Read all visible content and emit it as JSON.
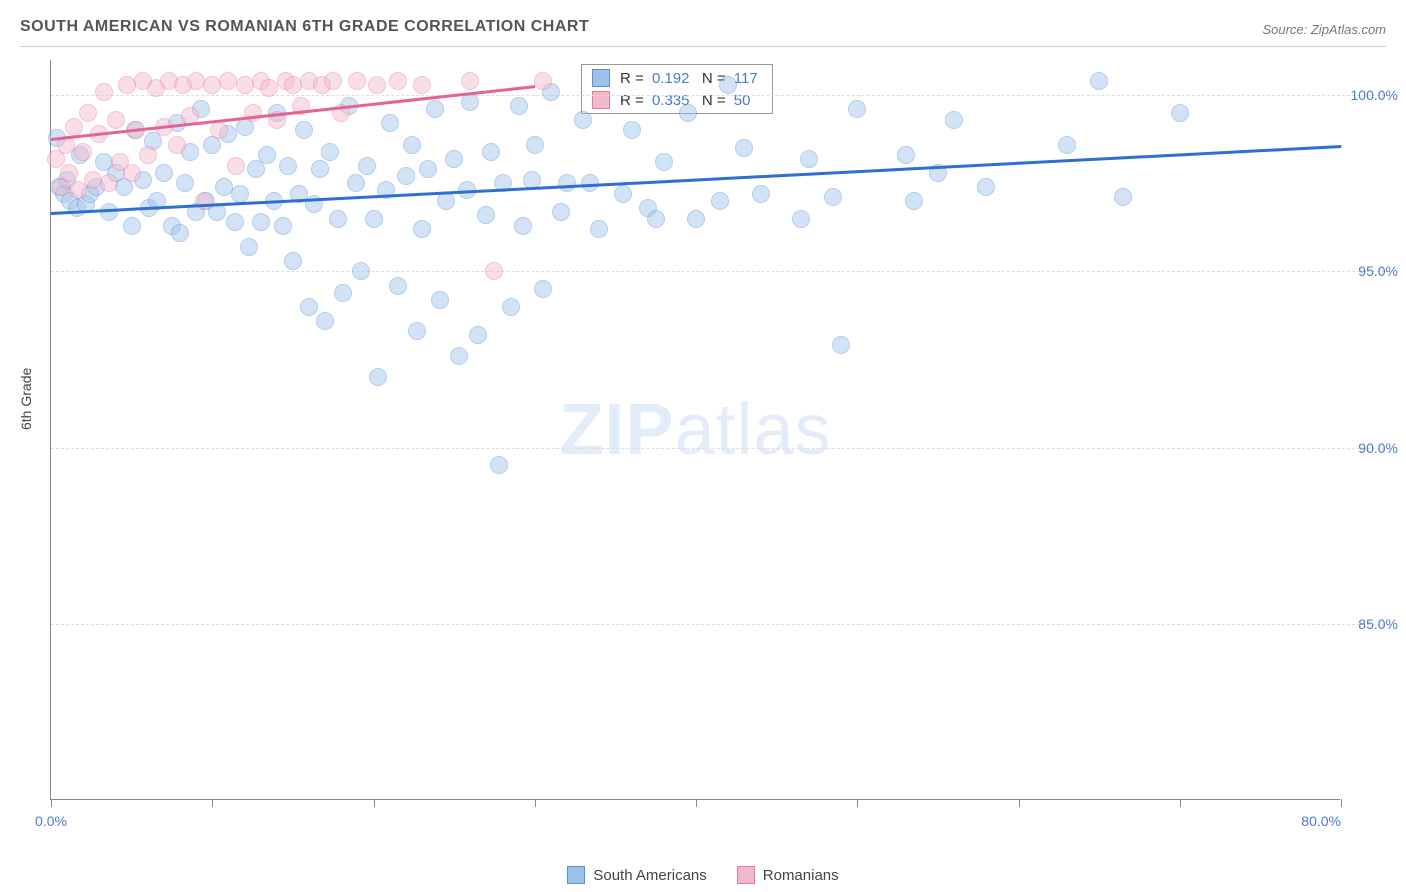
{
  "title": "SOUTH AMERICAN VS ROMANIAN 6TH GRADE CORRELATION CHART",
  "source_label": "Source: ZipAtlas.com",
  "y_axis_title": "6th Grade",
  "watermark_a": "ZIP",
  "watermark_b": "atlas",
  "chart": {
    "type": "scatter",
    "xlim": [
      0,
      80
    ],
    "ylim": [
      80,
      101
    ],
    "x_ticks_major": [
      0,
      80
    ],
    "x_ticks_minor": [
      10,
      20,
      30,
      40,
      50,
      60,
      70
    ],
    "x_tick_labels": {
      "0": "0.0%",
      "80": "80.0%"
    },
    "y_ticks": [
      85,
      90,
      95,
      100
    ],
    "y_tick_labels": {
      "85": "85.0%",
      "90": "90.0%",
      "95": "95.0%",
      "100": "100.0%"
    },
    "grid_color": "#dddddd",
    "background_color": "#ffffff",
    "axis_color": "#888888",
    "tick_label_color": "#4a7bc8",
    "marker_radius": 9,
    "marker_opacity": 0.45,
    "series": [
      {
        "name": "South Americans",
        "color_fill": "#9cc2ec",
        "color_stroke": "#5b8fd6",
        "trend": {
          "x1": 0,
          "y1": 96.7,
          "x2": 80,
          "y2": 98.6,
          "color": "#2e6fd1",
          "width": 2.5
        },
        "stats": {
          "R": "0.192",
          "N": "117"
        },
        "points": [
          [
            0.5,
            97.4
          ],
          [
            0.8,
            97.2
          ],
          [
            1.0,
            97.6
          ],
          [
            1.2,
            97.0
          ],
          [
            1.6,
            96.8
          ],
          [
            1.8,
            98.3
          ],
          [
            2.2,
            96.9
          ],
          [
            2.4,
            97.2
          ],
          [
            0.4,
            98.8
          ],
          [
            2.8,
            97.4
          ],
          [
            3.3,
            98.1
          ],
          [
            3.6,
            96.7
          ],
          [
            4.0,
            97.8
          ],
          [
            4.5,
            97.4
          ],
          [
            5.0,
            96.3
          ],
          [
            5.2,
            99.0
          ],
          [
            5.7,
            97.6
          ],
          [
            6.1,
            96.8
          ],
          [
            6.3,
            98.7
          ],
          [
            6.6,
            97.0
          ],
          [
            7.0,
            97.8
          ],
          [
            7.5,
            96.3
          ],
          [
            7.8,
            99.2
          ],
          [
            8.0,
            96.1
          ],
          [
            8.3,
            97.5
          ],
          [
            8.6,
            98.4
          ],
          [
            9.0,
            96.7
          ],
          [
            9.3,
            99.6
          ],
          [
            9.6,
            97.0
          ],
          [
            10.0,
            98.6
          ],
          [
            10.3,
            96.7
          ],
          [
            10.7,
            97.4
          ],
          [
            11.0,
            98.9
          ],
          [
            11.4,
            96.4
          ],
          [
            11.7,
            97.2
          ],
          [
            12.0,
            99.1
          ],
          [
            12.3,
            95.7
          ],
          [
            12.7,
            97.9
          ],
          [
            13.0,
            96.4
          ],
          [
            13.4,
            98.3
          ],
          [
            13.8,
            97.0
          ],
          [
            14.0,
            99.5
          ],
          [
            14.4,
            96.3
          ],
          [
            14.7,
            98.0
          ],
          [
            15.0,
            95.3
          ],
          [
            15.4,
            97.2
          ],
          [
            15.7,
            99.0
          ],
          [
            16.0,
            94.0
          ],
          [
            16.3,
            96.9
          ],
          [
            16.7,
            97.9
          ],
          [
            17.0,
            93.6
          ],
          [
            17.3,
            98.4
          ],
          [
            17.8,
            96.5
          ],
          [
            18.1,
            94.4
          ],
          [
            18.5,
            99.7
          ],
          [
            18.9,
            97.5
          ],
          [
            19.2,
            95.0
          ],
          [
            19.6,
            98.0
          ],
          [
            20.0,
            96.5
          ],
          [
            20.3,
            92.0
          ],
          [
            20.8,
            97.3
          ],
          [
            21.0,
            99.2
          ],
          [
            21.5,
            94.6
          ],
          [
            22.0,
            97.7
          ],
          [
            22.4,
            98.6
          ],
          [
            22.7,
            93.3
          ],
          [
            23.0,
            96.2
          ],
          [
            23.4,
            97.9
          ],
          [
            23.8,
            99.6
          ],
          [
            24.1,
            94.2
          ],
          [
            24.5,
            97.0
          ],
          [
            25.0,
            98.2
          ],
          [
            25.3,
            92.6
          ],
          [
            25.8,
            97.3
          ],
          [
            26.0,
            99.8
          ],
          [
            26.5,
            93.2
          ],
          [
            27.0,
            96.6
          ],
          [
            27.3,
            98.4
          ],
          [
            27.8,
            89.5
          ],
          [
            28.0,
            97.5
          ],
          [
            28.5,
            94.0
          ],
          [
            29.0,
            99.7
          ],
          [
            29.3,
            96.3
          ],
          [
            29.8,
            97.6
          ],
          [
            30.0,
            98.6
          ],
          [
            30.5,
            94.5
          ],
          [
            31.0,
            100.1
          ],
          [
            31.6,
            96.7
          ],
          [
            32.0,
            97.5
          ],
          [
            33.0,
            99.3
          ],
          [
            33.4,
            97.5
          ],
          [
            34.0,
            96.2
          ],
          [
            35.5,
            97.2
          ],
          [
            36.0,
            99.0
          ],
          [
            37.0,
            96.8
          ],
          [
            37.5,
            96.5
          ],
          [
            38.0,
            98.1
          ],
          [
            39.5,
            99.5
          ],
          [
            40.0,
            96.5
          ],
          [
            41.5,
            97.0
          ],
          [
            42.0,
            100.3
          ],
          [
            43.0,
            98.5
          ],
          [
            44.0,
            97.2
          ],
          [
            46.5,
            96.5
          ],
          [
            47.0,
            98.2
          ],
          [
            48.5,
            97.1
          ],
          [
            50.0,
            99.6
          ],
          [
            49.0,
            92.9
          ],
          [
            53.0,
            98.3
          ],
          [
            53.5,
            97.0
          ],
          [
            55.0,
            97.8
          ],
          [
            56.0,
            99.3
          ],
          [
            58.0,
            97.4
          ],
          [
            63.0,
            98.6
          ],
          [
            65.0,
            100.4
          ],
          [
            66.5,
            97.1
          ],
          [
            70.0,
            99.5
          ]
        ]
      },
      {
        "name": "Romanians",
        "color_fill": "#f5b8cb",
        "color_stroke": "#e77aa0",
        "trend": {
          "x1": 0,
          "y1": 98.8,
          "x2": 30,
          "y2": 100.3,
          "color": "#e36494",
          "width": 2.5
        },
        "stats": {
          "R": "0.335",
          "N": "50"
        },
        "points": [
          [
            0.3,
            98.2
          ],
          [
            0.6,
            97.4
          ],
          [
            0.9,
            98.6
          ],
          [
            1.1,
            97.8
          ],
          [
            1.4,
            99.1
          ],
          [
            1.7,
            97.3
          ],
          [
            2.0,
            98.4
          ],
          [
            2.3,
            99.5
          ],
          [
            2.6,
            97.6
          ],
          [
            3.0,
            98.9
          ],
          [
            3.3,
            100.1
          ],
          [
            3.6,
            97.5
          ],
          [
            4.0,
            99.3
          ],
          [
            4.3,
            98.1
          ],
          [
            4.7,
            100.3
          ],
          [
            5.0,
            97.8
          ],
          [
            5.3,
            99.0
          ],
          [
            5.7,
            100.4
          ],
          [
            6.0,
            98.3
          ],
          [
            6.5,
            100.2
          ],
          [
            7.0,
            99.1
          ],
          [
            7.3,
            100.4
          ],
          [
            7.8,
            98.6
          ],
          [
            8.2,
            100.3
          ],
          [
            8.6,
            99.4
          ],
          [
            9.0,
            100.4
          ],
          [
            9.5,
            97.0
          ],
          [
            10.0,
            100.3
          ],
          [
            10.4,
            99.0
          ],
          [
            11.0,
            100.4
          ],
          [
            11.5,
            98.0
          ],
          [
            12.0,
            100.3
          ],
          [
            12.5,
            99.5
          ],
          [
            13.0,
            100.4
          ],
          [
            13.5,
            100.2
          ],
          [
            14.0,
            99.3
          ],
          [
            14.6,
            100.4
          ],
          [
            15.0,
            100.3
          ],
          [
            15.5,
            99.7
          ],
          [
            16.0,
            100.4
          ],
          [
            16.8,
            100.3
          ],
          [
            17.5,
            100.4
          ],
          [
            18.0,
            99.5
          ],
          [
            19.0,
            100.4
          ],
          [
            20.2,
            100.3
          ],
          [
            21.5,
            100.4
          ],
          [
            23.0,
            100.3
          ],
          [
            26.0,
            100.4
          ],
          [
            27.5,
            95.0
          ],
          [
            30.5,
            100.4
          ]
        ]
      }
    ],
    "stats_labels": {
      "R": "R = ",
      "N": "N = "
    },
    "legend_labels": [
      "South Americans",
      "Romanians"
    ]
  }
}
